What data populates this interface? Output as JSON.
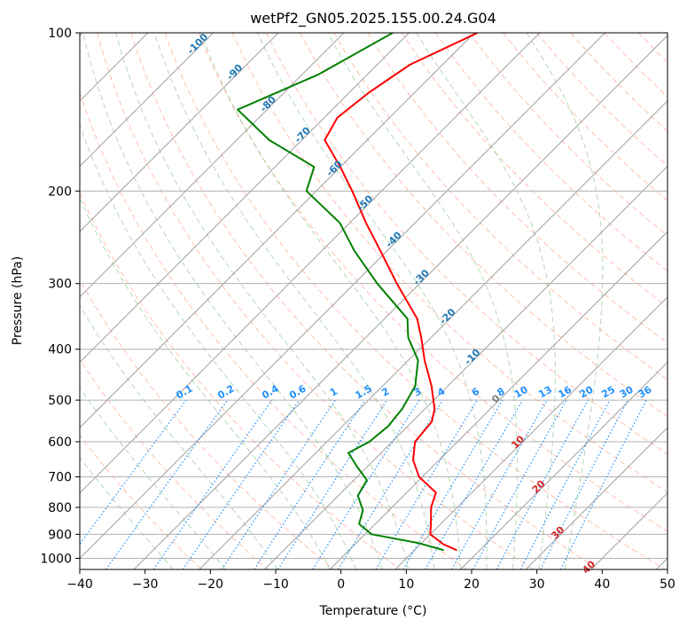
{
  "chart_data": {
    "type": "line",
    "title": "wetPf2_GN05.2025.155.00.24.G04",
    "xlabel": "Temperature (°C)",
    "ylabel": "Pressure (hPa)",
    "xlim": [
      -40,
      50
    ],
    "ylim": [
      1050,
      100
    ],
    "y_scale": "log",
    "x_ticks": [
      -40,
      -30,
      -20,
      -10,
      0,
      10,
      20,
      30,
      40,
      50
    ],
    "y_ticks": [
      100,
      200,
      300,
      400,
      500,
      600,
      700,
      800,
      900,
      1000
    ],
    "grid": true,
    "skew_degrees": 45,
    "series": [
      {
        "color": "#ff0000",
        "points": [
          {
            "t": -59.5,
            "p": 100
          },
          {
            "t": -65.0,
            "p": 115
          },
          {
            "t": -67.0,
            "p": 130
          },
          {
            "t": -68.0,
            "p": 145
          },
          {
            "t": -66.5,
            "p": 160
          },
          {
            "t": -60.0,
            "p": 180
          },
          {
            "t": -54.5,
            "p": 200
          },
          {
            "t": -47.5,
            "p": 230
          },
          {
            "t": -40.0,
            "p": 265
          },
          {
            "t": -33.5,
            "p": 300
          },
          {
            "t": -25.0,
            "p": 350
          },
          {
            "t": -21.5,
            "p": 380
          },
          {
            "t": -17.5,
            "p": 420
          },
          {
            "t": -12.5,
            "p": 470
          },
          {
            "t": -8.5,
            "p": 520
          },
          {
            "t": -7.0,
            "p": 550
          },
          {
            "t": -6.5,
            "p": 600
          },
          {
            "t": -4.0,
            "p": 650
          },
          {
            "t": -0.5,
            "p": 700
          },
          {
            "t": 4.5,
            "p": 750
          },
          {
            "t": 6.0,
            "p": 800
          },
          {
            "t": 8.5,
            "p": 860
          },
          {
            "t": 10.0,
            "p": 900
          },
          {
            "t": 13.5,
            "p": 940
          },
          {
            "t": 16.5,
            "p": 965
          }
        ]
      },
      {
        "color": "#008000",
        "points": [
          {
            "t": -72.5,
            "p": 100
          },
          {
            "t": -77.5,
            "p": 120
          },
          {
            "t": -84.5,
            "p": 140
          },
          {
            "t": -75.0,
            "p": 160
          },
          {
            "t": -64.0,
            "p": 180
          },
          {
            "t": -61.5,
            "p": 200
          },
          {
            "t": -51.5,
            "p": 230
          },
          {
            "t": -45.0,
            "p": 260
          },
          {
            "t": -36.5,
            "p": 300
          },
          {
            "t": -26.5,
            "p": 350
          },
          {
            "t": -23.5,
            "p": 380
          },
          {
            "t": -18.5,
            "p": 420
          },
          {
            "t": -15.0,
            "p": 470
          },
          {
            "t": -13.5,
            "p": 520
          },
          {
            "t": -13.0,
            "p": 560
          },
          {
            "t": -13.5,
            "p": 600
          },
          {
            "t": -15.0,
            "p": 630
          },
          {
            "t": -11.5,
            "p": 670
          },
          {
            "t": -8.0,
            "p": 710
          },
          {
            "t": -7.0,
            "p": 760
          },
          {
            "t": -4.0,
            "p": 810
          },
          {
            "t": -2.5,
            "p": 860
          },
          {
            "t": 1.0,
            "p": 900
          },
          {
            "t": 9.5,
            "p": 935
          },
          {
            "t": 14.5,
            "p": 965
          }
        ]
      }
    ],
    "isotherm_labels": [
      "-100",
      "-90",
      "-80",
      "-70",
      "-60",
      "-50",
      "-40",
      "-30",
      "-20",
      "-10",
      "0",
      "10",
      "20",
      "30",
      "40"
    ],
    "mixing_ratio_labels": [
      "0.1",
      "0.2",
      "0.4",
      "0.6",
      "1",
      "1.5",
      "2",
      "3",
      "4",
      "6",
      "8",
      "10",
      "13",
      "16",
      "20",
      "25",
      "30",
      "36"
    ]
  },
  "colors": {
    "temperature": "#ff0000",
    "dewpoint": "#008000",
    "isotherm_cold": "#1f77b4",
    "isotherm_zero": "#808080",
    "isotherm_warm": "#d62728",
    "mixing_ratio": "#1e90ff",
    "dry_adiabat": "#ff8c69",
    "moist_adiabat": "#7fbf7f"
  }
}
